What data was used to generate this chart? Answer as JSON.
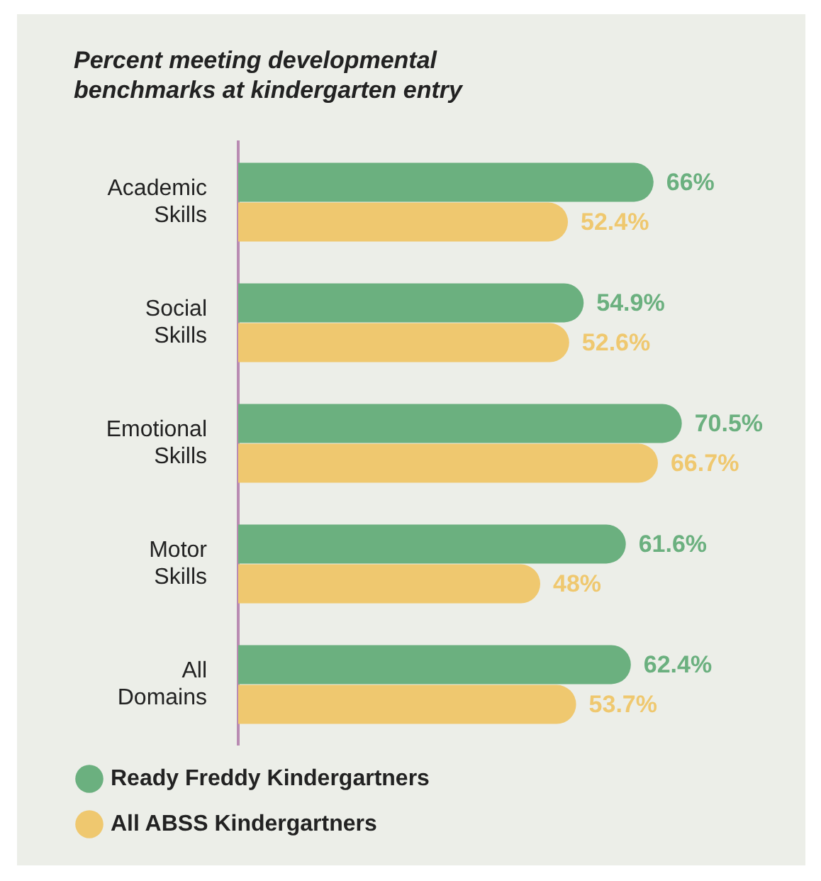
{
  "chart_data": {
    "type": "bar",
    "orientation": "horizontal",
    "title": "Percent meeting developmental benchmarks at kindergarten entry",
    "categories": [
      "Academic Skills",
      "Social Skills",
      "Emotional Skills",
      "Motor Skills",
      "All Domains"
    ],
    "series": [
      {
        "name": "Ready Freddy Kindergartners",
        "color": "#6bb07f",
        "values": [
          66,
          54.9,
          70.5,
          61.6,
          62.4
        ],
        "value_labels": [
          "66%",
          "54.9%",
          "70.5%",
          "61.6%",
          "62.4%"
        ]
      },
      {
        "name": "All ABSS Kindergartners",
        "color": "#efc86f",
        "values": [
          52.4,
          52.6,
          66.7,
          48,
          53.7
        ],
        "value_labels": [
          "52.4%",
          "52.6%",
          "66.7%",
          "48%",
          "53.7%"
        ]
      }
    ],
    "tick_labels": "y",
    "legend": "bottom left"
  }
}
